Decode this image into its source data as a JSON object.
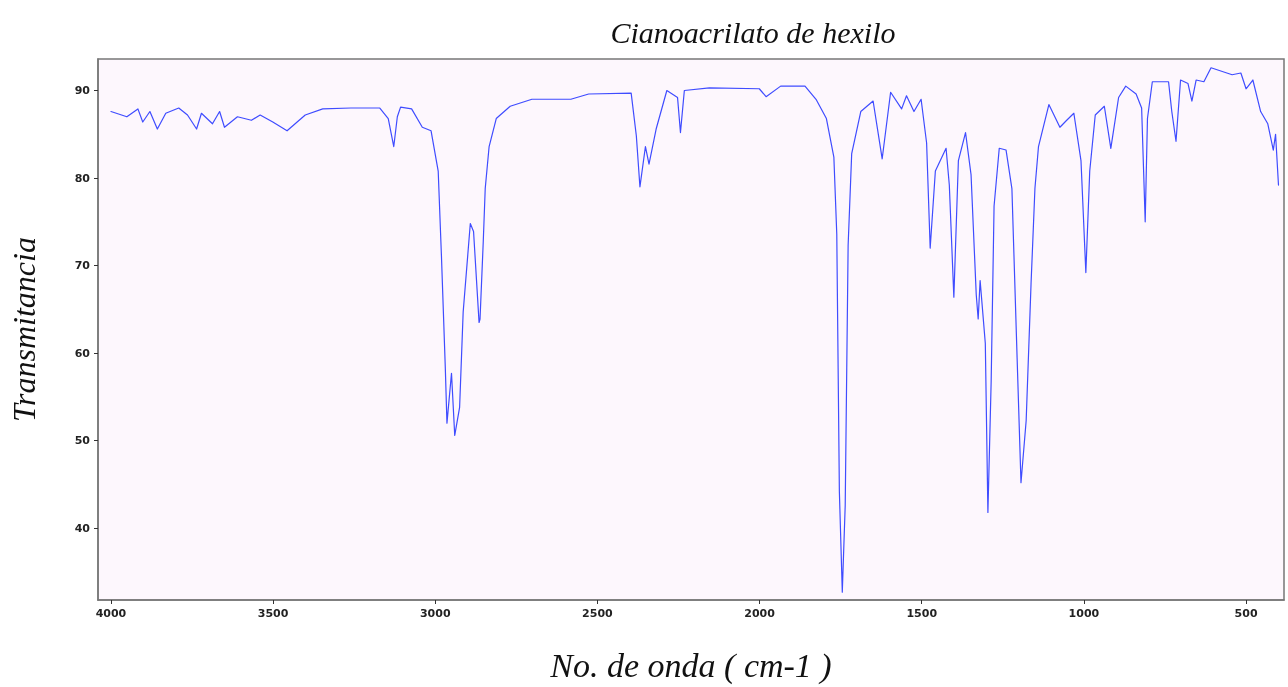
{
  "chart_data": {
    "type": "line",
    "title": "Cianoacrilato de hexilo",
    "xlabel": "No. de onda ( cm-1 )",
    "ylabel": "Transmitancia",
    "xlim": [
      4040,
      383
    ],
    "xticks": [
      4000,
      3500,
      3000,
      2500,
      2000,
      1500,
      1000,
      500
    ],
    "ylim": [
      31.8,
      93.6
    ],
    "yticks": [
      40,
      50,
      60,
      70,
      80,
      90
    ],
    "grid": false,
    "marker": "none",
    "line_style": "solid",
    "series": [
      {
        "color": "#3f4cff",
        "x": [
          4000,
          3951,
          3917,
          3902,
          3880,
          3857,
          3831,
          3791,
          3764,
          3736,
          3721,
          3687,
          3665,
          3650,
          3610,
          3567,
          3540,
          3501,
          3457,
          3401,
          3347,
          3260,
          3171,
          3145,
          3128,
          3117,
          3107,
          3073,
          3040,
          3013,
          2991,
          2981,
          2969,
          2964,
          2950,
          2940,
          2925,
          2914,
          2892,
          2882,
          2865,
          2862,
          2852,
          2846,
          2834,
          2812,
          2769,
          2702,
          2582,
          2527,
          2396,
          2380,
          2369,
          2352,
          2341,
          2319,
          2286,
          2253,
          2244,
          2232,
          2155,
          2001,
          1980,
          1935,
          1881,
          1860,
          1826,
          1794,
          1771,
          1762,
          1754,
          1745,
          1736,
          1727,
          1716,
          1688,
          1650,
          1622,
          1596,
          1562,
          1547,
          1524,
          1502,
          1485,
          1474,
          1458,
          1425,
          1415,
          1401,
          1387,
          1365,
          1348,
          1332,
          1326,
          1320,
          1304,
          1296,
          1286,
          1277,
          1261,
          1240,
          1222,
          1206,
          1194,
          1178,
          1163,
          1151,
          1140,
          1108,
          1074,
          1053,
          1031,
          1009,
          994,
          982,
          965,
          937,
          917,
          893,
          871,
          839,
          822,
          811,
          804,
          789,
          739,
          729,
          716,
          702,
          679,
          667,
          654,
          630,
          608,
          543,
          516,
          500,
          479,
          455,
          433,
          416,
          409,
          400
        ],
        "values": [
          87.6,
          87.0,
          87.9,
          86.4,
          87.6,
          85.6,
          87.4,
          88.0,
          87.2,
          85.6,
          87.4,
          86.2,
          87.6,
          85.8,
          87.0,
          86.6,
          87.2,
          86.4,
          85.4,
          87.2,
          87.9,
          88.0,
          88.0,
          86.8,
          83.6,
          87.0,
          88.1,
          87.9,
          85.8,
          85.4,
          80.8,
          71.1,
          58.2,
          52.0,
          57.7,
          50.6,
          53.8,
          64.7,
          74.8,
          73.9,
          63.5,
          63.9,
          72.8,
          78.8,
          83.6,
          86.8,
          88.2,
          89.0,
          89.0,
          89.6,
          89.7,
          84.8,
          79.0,
          83.6,
          81.6,
          85.6,
          90.0,
          89.2,
          85.2,
          90.0,
          90.3,
          90.2,
          89.3,
          90.5,
          90.5,
          90.5,
          89.0,
          86.8,
          82.4,
          73.6,
          44.2,
          32.7,
          42.6,
          72.3,
          82.8,
          87.6,
          88.8,
          82.2,
          89.8,
          87.9,
          89.4,
          87.6,
          89.0,
          84.0,
          72.0,
          80.8,
          83.4,
          79.2,
          66.4,
          82.0,
          85.2,
          80.4,
          66.7,
          63.9,
          68.3,
          61.1,
          41.8,
          56.7,
          76.8,
          83.4,
          83.2,
          78.8,
          59.5,
          45.2,
          52.3,
          67.9,
          78.8,
          83.6,
          88.4,
          85.8,
          86.6,
          87.4,
          82.0,
          69.2,
          80.8,
          87.2,
          88.2,
          83.4,
          89.2,
          90.5,
          89.6,
          88.0,
          75.0,
          86.8,
          91.0,
          91.0,
          87.6,
          84.2,
          91.2,
          90.8,
          88.8,
          91.2,
          91.0,
          92.6,
          91.8,
          92.0,
          90.2,
          91.2,
          87.6,
          86.2,
          83.2,
          85.0,
          79.2
        ]
      }
    ]
  }
}
